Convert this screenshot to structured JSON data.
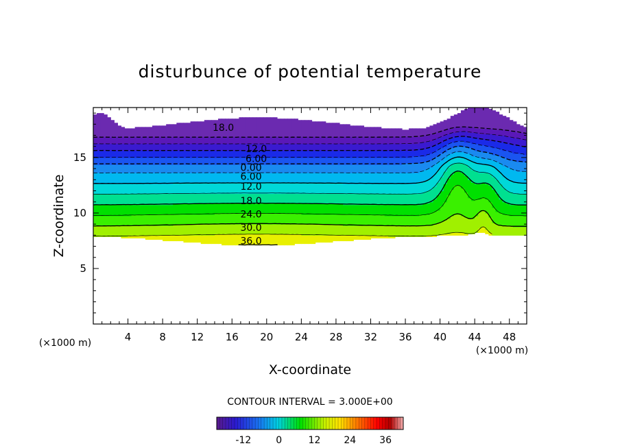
{
  "chart_data": {
    "type": "contour",
    "title": "disturbunce of potential temperature",
    "xlabel": "X-coordinate",
    "ylabel": "Z-coordinate",
    "x_unit_left": "(×1000 m)",
    "x_unit_right": "(×1000 m)",
    "xlim": [
      0,
      50
    ],
    "ylim": [
      0,
      19.5
    ],
    "x_ticks": [
      4,
      8,
      12,
      16,
      20,
      24,
      28,
      32,
      36,
      40,
      44,
      48
    ],
    "y_ticks": [
      5,
      10,
      15
    ],
    "x_tick_labels": [
      "4",
      "8",
      "12",
      "16",
      "20",
      "24",
      "28",
      "32",
      "36",
      "40",
      "44",
      "48"
    ],
    "y_tick_labels": [
      "5",
      "10",
      "15"
    ],
    "contour_levels": [
      -18,
      -15,
      -12,
      -9,
      -6,
      -3,
      0,
      3,
      6,
      9,
      12,
      15,
      18,
      21,
      24,
      27,
      30,
      33,
      36,
      39
    ],
    "contour_labels": [
      {
        "text": "18.0",
        "x": 15,
        "z": 17.7
      },
      {
        "text": "12.0",
        "x": 18.8,
        "z": 15.8
      },
      {
        "text": "6.00",
        "x": 18.8,
        "z": 14.9
      },
      {
        "text": "0.00",
        "x": 18.2,
        "z": 14.1
      },
      {
        "text": "6.00",
        "x": 18.2,
        "z": 13.3
      },
      {
        "text": "12.0",
        "x": 18.2,
        "z": 12.4
      },
      {
        "text": "18.0",
        "x": 18.2,
        "z": 11.1
      },
      {
        "text": "24.0",
        "x": 18.2,
        "z": 9.9
      },
      {
        "text": "30.0",
        "x": 18.2,
        "z": 8.7
      },
      {
        "text": "36.0",
        "x": 18.2,
        "z": 7.5
      }
    ],
    "contour_interval_text": "CONTOUR INTERVAL = 3.000E+00",
    "colorbar": {
      "min": -21,
      "max": 42,
      "ticks": [
        -12,
        0,
        12,
        24,
        36
      ],
      "tick_labels": [
        "-12",
        "0",
        "12",
        "24",
        "36"
      ]
    },
    "colors": {
      "cold_extreme": "#6a1fa8",
      "blue": "#1038e8",
      "cyan": "#00c8e8",
      "green": "#00e000",
      "yellow": "#f0f000",
      "orange": "#ff8000",
      "red": "#ff0000",
      "warm_extreme": "#f2a6a6"
    }
  }
}
